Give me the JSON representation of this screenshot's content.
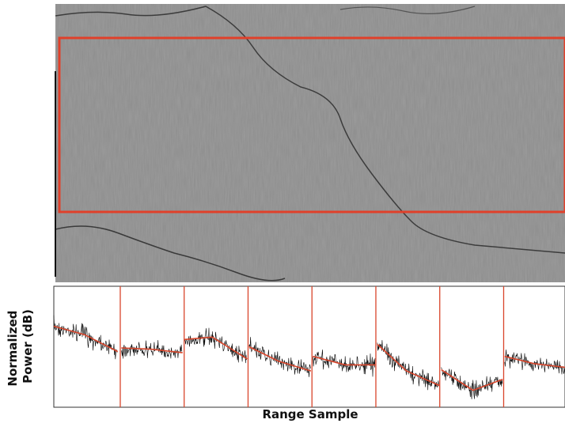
{
  "chart_data": {
    "type": "line",
    "xlabel": "Range Sample",
    "ylabel": "Normalized Power (dB)",
    "xlim": [
      0,
      100
    ],
    "ylim": [
      0,
      100
    ],
    "x": [
      0,
      6,
      12.5,
      12.9,
      13.2,
      19,
      25.2,
      25.4,
      25.6,
      31,
      37.8,
      38,
      38.2,
      44,
      50.3,
      50.5,
      50.7,
      57,
      62.9,
      63.1,
      63.3,
      69,
      75.4,
      75.6,
      75.8,
      82,
      87.8,
      88,
      88.2,
      94,
      100
    ],
    "series": [
      {
        "color": "#d9452b",
        "values": [
          67,
          60,
          46,
          null,
          49,
          48,
          45,
          null,
          56,
          58,
          40,
          null,
          50,
          38,
          30,
          null,
          42,
          35,
          35,
          null,
          52,
          30,
          18,
          null,
          31,
          14,
          23,
          null,
          42,
          36,
          33
        ]
      }
    ],
    "segment_boundaries": [
      13,
      25.5,
      38,
      50.5,
      63,
      75.5,
      88
    ],
    "boundary_color": "#d9452b",
    "noise_color": "#000000"
  }
}
